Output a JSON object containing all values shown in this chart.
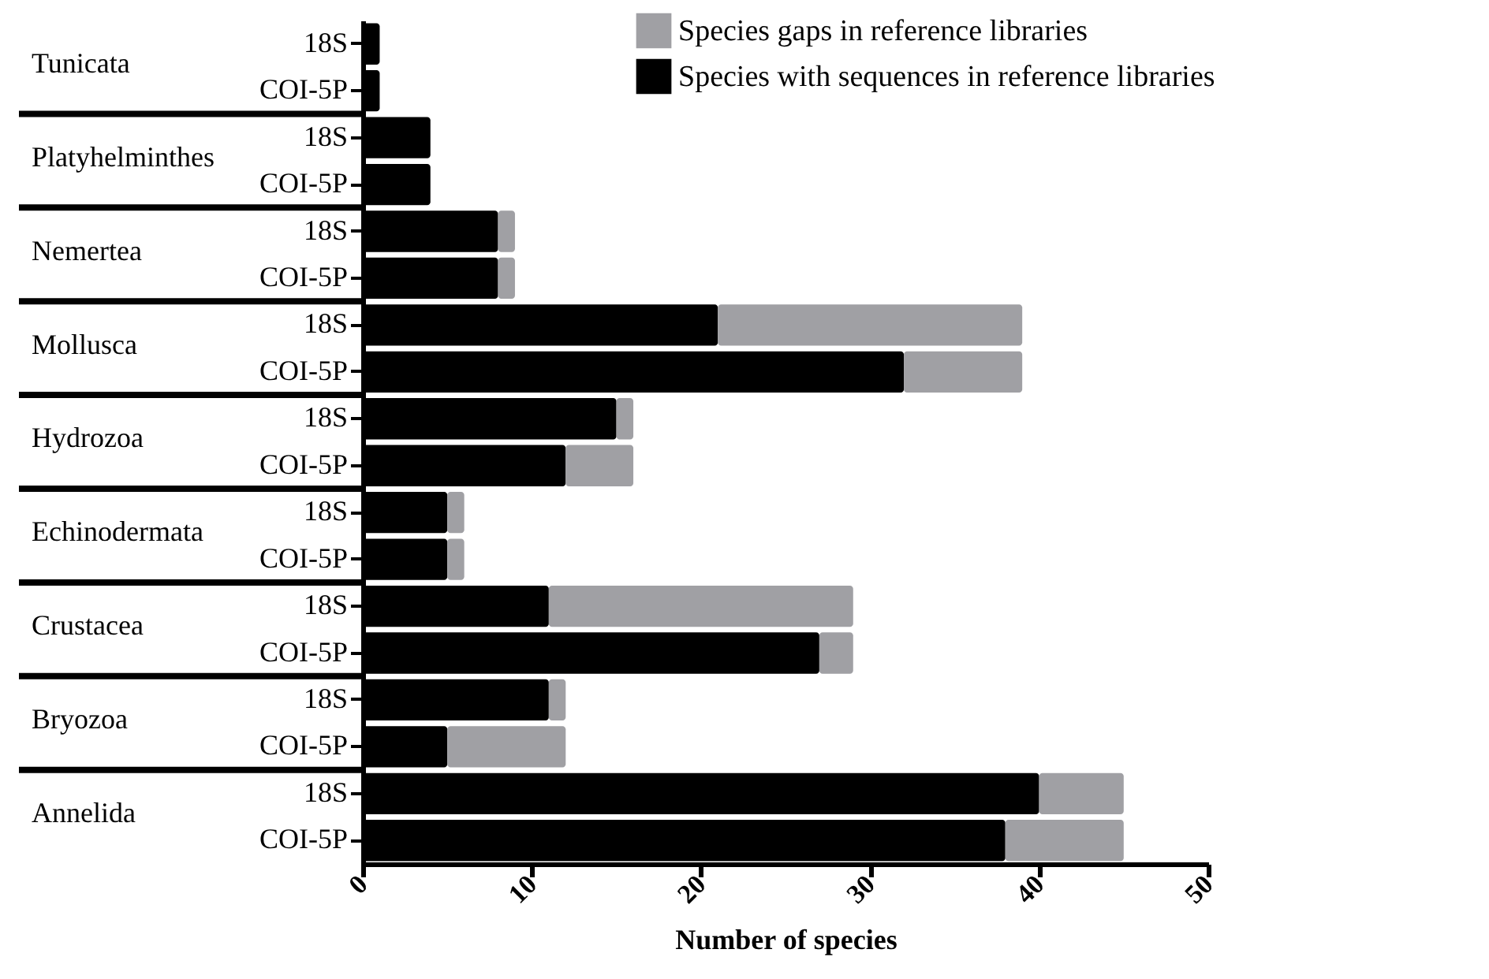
{
  "chart_data": {
    "type": "bar",
    "orientation": "horizontal",
    "stacked": true,
    "categories": [
      "18S",
      "COI-5P",
      "18S",
      "COI-5P",
      "18S",
      "COI-5P",
      "18S",
      "COI-5P",
      "18S",
      "COI-5P",
      "18S",
      "COI-5P",
      "18S",
      "COI-5P",
      "18S",
      "COI-5P",
      "18S",
      "COI-5P"
    ],
    "annotations": [
      "Tunicata",
      "Platyhelminthes",
      "Nemertea",
      "Mollusca",
      "Hydrozoa",
      "Echinodermata",
      "Crustacea",
      "Bryozoa",
      "Annelida"
    ],
    "series": [
      {
        "name": "Species with sequences in reference libraries",
        "color": "#000000",
        "values": [
          1,
          1,
          4,
          4,
          8,
          8,
          21,
          32,
          15,
          12,
          5,
          5,
          11,
          27,
          11,
          5,
          40,
          38
        ]
      },
      {
        "name": "Species gaps in reference libraries",
        "color": "#a0a0a4",
        "values": [
          0,
          0,
          0,
          0,
          1,
          1,
          18,
          7,
          1,
          4,
          1,
          1,
          18,
          2,
          1,
          7,
          5,
          7
        ]
      }
    ],
    "xlabel": "Number of species",
    "xlim": [
      0,
      50
    ],
    "xticks": [
      0,
      10,
      20,
      30,
      40,
      50
    ],
    "grid": false,
    "legend": "top right"
  }
}
